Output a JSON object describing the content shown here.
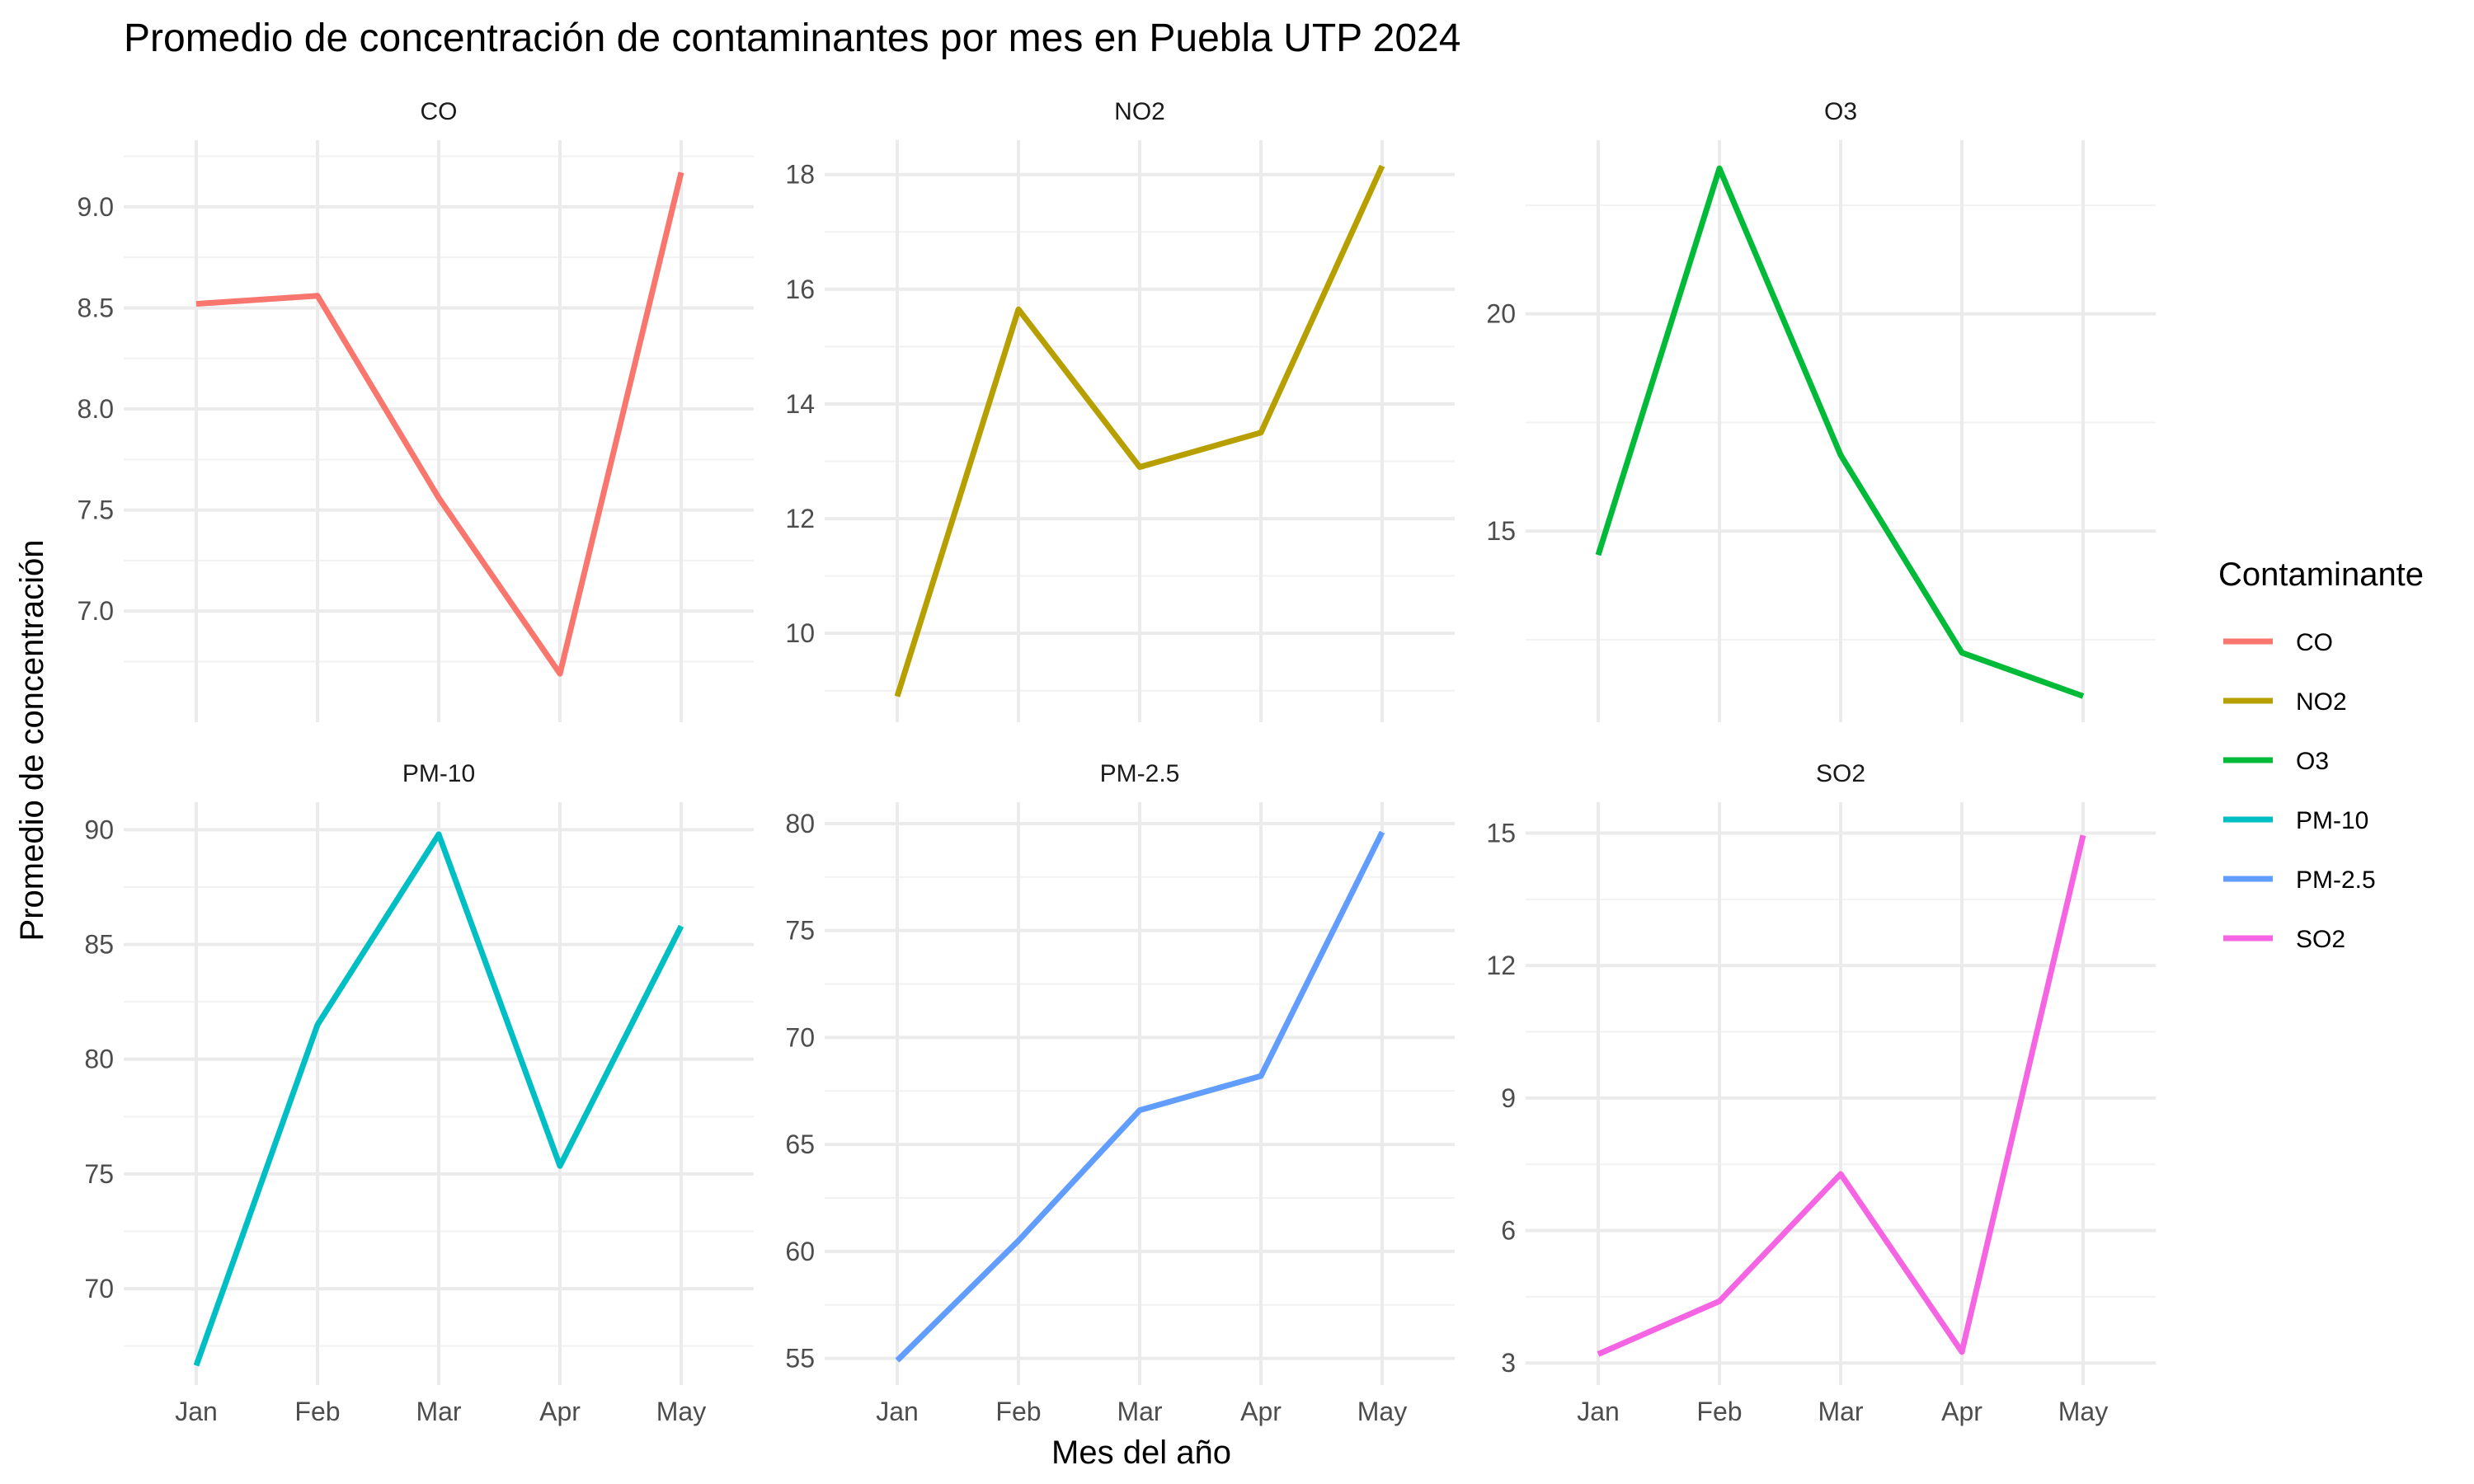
{
  "chart_data": {
    "type": "line",
    "title": "Promedio de concentración de contaminantes por mes en Puebla UTP 2024",
    "xlabel": "Mes del año",
    "ylabel": "Promedio de concentración",
    "legend": {
      "title": "Contaminante",
      "placement": "right"
    },
    "categories": [
      "Jan",
      "Feb",
      "Mar",
      "Apr",
      "May"
    ],
    "grid": true,
    "panels": [
      {
        "name": "CO",
        "color": "#F8766D",
        "values": [
          8.52,
          8.56,
          7.56,
          6.69,
          9.17
        ],
        "ylim": [
          6.45,
          9.33
        ],
        "yticks": [
          "7.0",
          "7.5",
          "8.0",
          "8.5",
          "9.0"
        ],
        "ytick_values": [
          7.0,
          7.5,
          8.0,
          8.5,
          9.0
        ]
      },
      {
        "name": "NO2",
        "color": "#B79F00",
        "values": [
          8.9,
          15.65,
          12.9,
          13.5,
          18.15
        ],
        "ylim": [
          8.45,
          18.6
        ],
        "yticks": [
          "10",
          "12",
          "14",
          "16",
          "18"
        ],
        "ytick_values": [
          10,
          12,
          14,
          16,
          18
        ]
      },
      {
        "name": "O3",
        "color": "#00BA38",
        "values": [
          14.45,
          23.35,
          16.75,
          12.2,
          11.2
        ],
        "ylim": [
          10.6,
          24.0
        ],
        "yticks": [
          "15",
          "20"
        ],
        "ytick_values": [
          15,
          20
        ]
      },
      {
        "name": "PM-10",
        "color": "#00BFC4",
        "values": [
          66.65,
          81.5,
          89.8,
          75.35,
          85.8
        ],
        "ylim": [
          65.8,
          91.2
        ],
        "yticks": [
          "70",
          "75",
          "80",
          "85",
          "90"
        ],
        "ytick_values": [
          70,
          75,
          80,
          85,
          90
        ]
      },
      {
        "name": "PM-2.5",
        "color": "#619CFF",
        "values": [
          54.9,
          60.5,
          66.6,
          68.2,
          79.6
        ],
        "ylim": [
          53.75,
          81.0
        ],
        "yticks": [
          "55",
          "60",
          "65",
          "70",
          "75",
          "80"
        ],
        "ytick_values": [
          55,
          60,
          65,
          70,
          75,
          80
        ]
      },
      {
        "name": "SO2",
        "color": "#F564E3",
        "values": [
          3.2,
          4.4,
          7.28,
          3.25,
          14.95
        ],
        "ylim": [
          2.5,
          15.7
        ],
        "yticks": [
          "3",
          "6",
          "9",
          "12",
          "15"
        ],
        "ytick_values": [
          3,
          6,
          9,
          12,
          15
        ]
      }
    ]
  }
}
